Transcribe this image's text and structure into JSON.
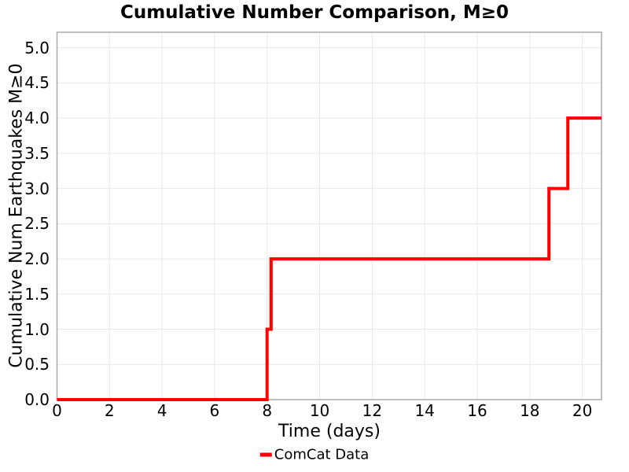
{
  "figure": {
    "background": "#ffffff"
  },
  "chart_data": {
    "type": "line",
    "line_style": "step-post",
    "title": "Cumulative Number Comparison, M≥0",
    "xlabel": "Time (days)",
    "ylabel": "Cumulative Num Earthquakes M≥0",
    "xlim": [
      0,
      20.73
    ],
    "ylim": [
      0,
      5.22
    ],
    "xticks": {
      "values": [
        0,
        2,
        4,
        6,
        8,
        10,
        12,
        14,
        16,
        18,
        20
      ],
      "labels": [
        "0",
        "2",
        "4",
        "6",
        "8",
        "10",
        "12",
        "14",
        "16",
        "18",
        "20"
      ]
    },
    "yticks": {
      "values": [
        0,
        0.5,
        1,
        1.5,
        2,
        2.5,
        3,
        3.5,
        4,
        4.5,
        5
      ],
      "labels": [
        "0.0",
        "0.5",
        "1.0",
        "1.5",
        "2.0",
        "2.5",
        "3.0",
        "3.5",
        "4.0",
        "4.5",
        "5.0"
      ]
    },
    "grid": {
      "show": true,
      "color": "#e9e9e9"
    },
    "axes": {
      "spine_color": "#aaaaaa",
      "text_color": "#000000"
    },
    "legend": {
      "position": "bottom-center",
      "entries": [
        {
          "label": "ComCat Data",
          "color": "#ff0000",
          "marker": "line"
        }
      ]
    },
    "series": [
      {
        "name": "ComCat Data",
        "color": "#ff0000",
        "line_width": 4,
        "event_times_days": [
          8.0,
          8.15,
          18.73,
          19.45
        ],
        "cumulative_counts": [
          1,
          2,
          3,
          4
        ],
        "step_points": [
          [
            0,
            0
          ],
          [
            8.0,
            0
          ],
          [
            8.0,
            1
          ],
          [
            8.15,
            1
          ],
          [
            8.15,
            2
          ],
          [
            18.73,
            2
          ],
          [
            18.73,
            3
          ],
          [
            19.45,
            3
          ],
          [
            19.45,
            4
          ],
          [
            20.73,
            4
          ]
        ]
      }
    ]
  }
}
